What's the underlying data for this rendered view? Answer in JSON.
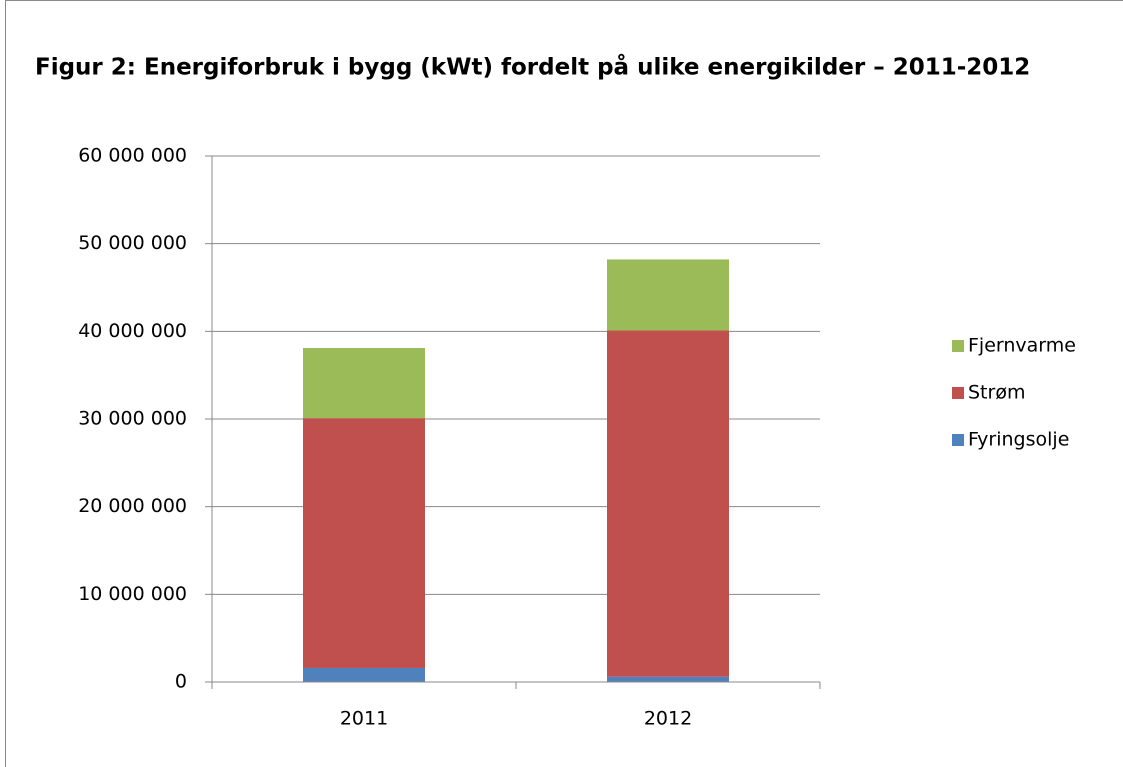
{
  "chart_data": {
    "type": "stacked_bar",
    "title": "Figur 2: Energiforbruk i bygg (kWt) fordelt på ulike energikilder – 2011-2012",
    "categories": [
      "2011",
      "2012"
    ],
    "series": [
      {
        "name": "Fyringsolje",
        "color": "#4f81bd",
        "values": [
          1600000,
          600000
        ]
      },
      {
        "name": "Strøm",
        "color": "#c0504d",
        "values": [
          28500000,
          39500000
        ]
      },
      {
        "name": "Fjernvarme",
        "color": "#9bbb59",
        "values": [
          8000000,
          8100000
        ]
      }
    ],
    "ylim": [
      0,
      60000000
    ],
    "yticks": [
      0,
      {
        "value": 10000000,
        "label": "10 000 000"
      },
      {
        "value": 20000000,
        "label": "20 000 000"
      },
      {
        "value": 30000000,
        "label": "30 000 000"
      },
      {
        "value": 40000000,
        "label": "40 000 000"
      },
      {
        "value": 50000000,
        "label": "50 000 000"
      },
      {
        "value": 60000000,
        "label": "60 000 000"
      }
    ],
    "grid": true,
    "legend": "right"
  }
}
